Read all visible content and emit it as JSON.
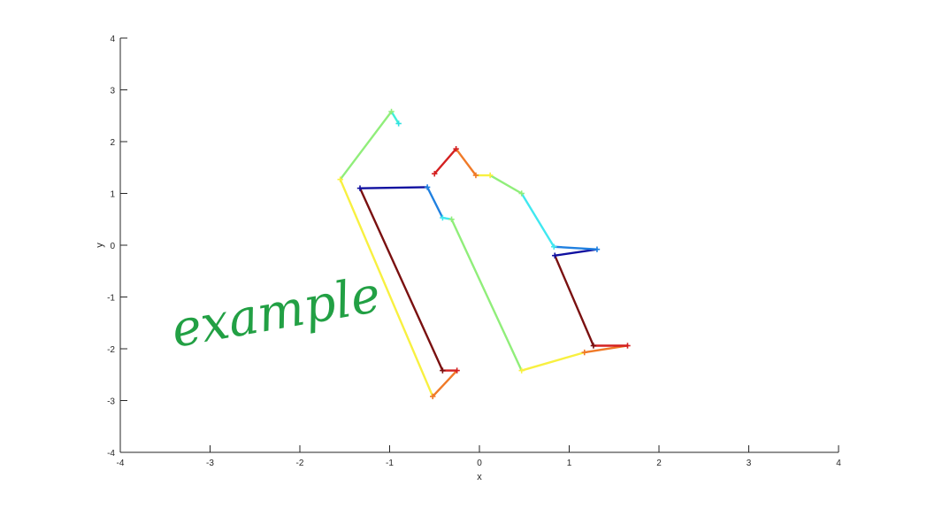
{
  "chart_data": {
    "type": "line",
    "title": "",
    "xlabel": "x",
    "ylabel": "y",
    "xlim": [
      -4,
      4
    ],
    "ylim": [
      -4,
      4
    ],
    "grid": false,
    "legend": "none",
    "xticks": [
      "-4",
      "-3",
      "-2",
      "-1",
      "0",
      "1",
      "2",
      "3",
      "4"
    ],
    "yticks": [
      "-4",
      "-3",
      "-2",
      "-1",
      "0",
      "1",
      "2",
      "3",
      "4"
    ],
    "marker": "+",
    "annotation": {
      "text": "example",
      "color": "#22a044"
    },
    "series": [
      {
        "points": [
          [
            -0.9,
            2.35
          ],
          [
            -0.98,
            2.58
          ],
          [
            -1.55,
            1.27
          ],
          [
            -0.52,
            -2.92
          ],
          [
            -0.25,
            -2.42
          ],
          [
            -0.41,
            -2.42
          ],
          [
            -1.33,
            1.1
          ],
          [
            -0.58,
            1.12
          ],
          [
            -0.41,
            0.53
          ],
          [
            -0.31,
            0.5
          ],
          [
            0.47,
            -2.42
          ],
          [
            1.17,
            -2.07
          ],
          [
            1.65,
            -1.94
          ],
          [
            1.27,
            -1.94
          ],
          [
            0.84,
            -0.2
          ],
          [
            1.31,
            -0.08
          ],
          [
            0.83,
            -0.03
          ],
          [
            0.47,
            1.0
          ],
          [
            0.12,
            1.35
          ],
          [
            -0.04,
            1.35
          ],
          [
            -0.26,
            1.86
          ],
          [
            -0.5,
            1.38
          ]
        ],
        "segment_colors": [
          "#40f0d8",
          "#90ee7a",
          "#f8f040",
          "#f07a28",
          "#d42020",
          "#7a1010",
          "#1010a0",
          "#2080e0",
          "#40e8f0",
          "#90ee7a",
          "#f8f040",
          "#f07a28",
          "#d42020",
          "#7a1010",
          "#1010a0",
          "#2080e0",
          "#40e8f0",
          "#90ee7a",
          "#f8f040",
          "#f07a28",
          "#d42020"
        ],
        "point_colors": [
          "#30e0e0",
          "#90ee7a",
          "#f8f040",
          "#f07a28",
          "#d42020",
          "#7a1010",
          "#1010a0",
          "#2080e0",
          "#40e8f0",
          "#90ee7a",
          "#f8f040",
          "#f07a28",
          "#d42020",
          "#7a1010",
          "#1010a0",
          "#2080e0",
          "#40e8f0",
          "#90ee7a",
          "#f8f040",
          "#f07a28",
          "#d42020",
          "#d42020"
        ]
      }
    ]
  }
}
